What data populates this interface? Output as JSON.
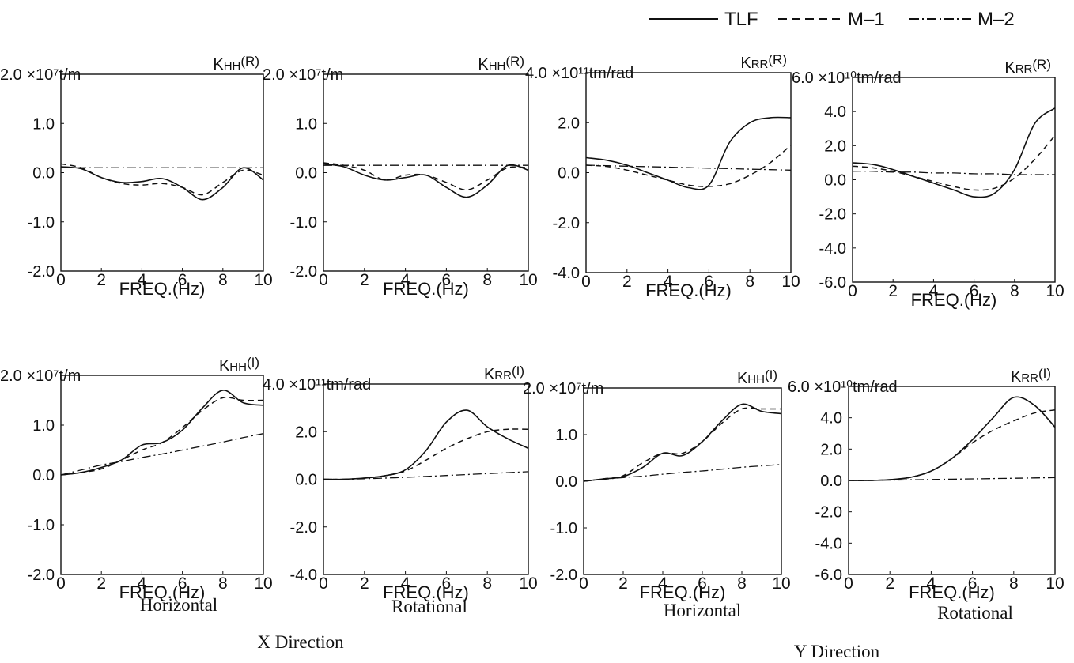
{
  "legend": {
    "entries": [
      {
        "label": "TLF",
        "style": "solid"
      },
      {
        "label": "M–1",
        "style": "dashed"
      },
      {
        "label": "M–2",
        "style": "dashdot"
      }
    ]
  },
  "captions": {
    "x_direction": "X Direction",
    "y_direction": "Y Direction",
    "horizontal": "Horizontal",
    "rotational": "Rotational"
  },
  "chart_data": [
    {
      "type": "line",
      "id": "p1",
      "group": "X Direction",
      "kind": "Horizontal",
      "unit": "×10⁷t/m",
      "title": "KHH(R)",
      "xlabel": "FREQ.(Hz)",
      "xlim": [
        0,
        10
      ],
      "ylim": [
        -2.0,
        2.0
      ],
      "yticks": [
        "-2.0",
        "-1.0",
        "0.0",
        "1.0",
        "2.0"
      ],
      "xticks": [
        "0",
        "2",
        "4",
        "6",
        "8",
        "10"
      ],
      "x": [
        0,
        1,
        2,
        3,
        4,
        5,
        6,
        7,
        8,
        9,
        10
      ],
      "series": [
        {
          "legend": "TLF",
          "values": [
            0.12,
            0.08,
            -0.1,
            -0.2,
            -0.18,
            -0.12,
            -0.3,
            -0.55,
            -0.3,
            0.1,
            -0.15
          ]
        },
        {
          "legend": "M–1",
          "values": [
            0.18,
            0.1,
            -0.1,
            -0.22,
            -0.25,
            -0.22,
            -0.3,
            -0.45,
            -0.2,
            0.05,
            -0.05
          ]
        },
        {
          "legend": "M–2",
          "values": [
            0.1,
            0.1,
            0.1,
            0.1,
            0.1,
            0.1,
            0.1,
            0.1,
            0.1,
            0.1,
            0.1
          ]
        }
      ]
    },
    {
      "type": "line",
      "id": "p2",
      "group": "X Direction",
      "kind": "Rotational",
      "unit": "×10⁷t/m",
      "title": "KHH(R)",
      "xlabel": "FREQ.(Hz)",
      "xlim": [
        0,
        10
      ],
      "ylim": [
        -2.0,
        2.0
      ],
      "yticks": [
        "-2.0",
        "-1.0",
        "0.0",
        "1.0",
        "2.0"
      ],
      "xticks": [
        "0",
        "2",
        "4",
        "6",
        "8",
        "10"
      ],
      "x": [
        0,
        1,
        2,
        3,
        4,
        5,
        6,
        7,
        8,
        9,
        10
      ],
      "series": [
        {
          "legend": "TLF",
          "values": [
            0.18,
            0.12,
            -0.05,
            -0.15,
            -0.1,
            -0.05,
            -0.3,
            -0.5,
            -0.25,
            0.15,
            0.05
          ]
        },
        {
          "legend": "M–1",
          "values": [
            0.2,
            0.15,
            0.05,
            -0.15,
            -0.05,
            -0.05,
            -0.2,
            -0.35,
            -0.15,
            0.1,
            0.1
          ]
        },
        {
          "legend": "M–2",
          "values": [
            0.15,
            0.15,
            0.15,
            0.15,
            0.15,
            0.15,
            0.15,
            0.15,
            0.15,
            0.15,
            0.15
          ]
        }
      ]
    },
    {
      "type": "line",
      "id": "p3",
      "group": "Y Direction",
      "kind": "Horizontal",
      "unit": "×10¹¹tm/rad",
      "title": "KRR(R)",
      "xlabel": "FREQ.(Hz)",
      "xlim": [
        0,
        10
      ],
      "ylim": [
        -4.0,
        4.0
      ],
      "yticks": [
        "-4.0",
        "-2.0",
        "0.0",
        "2.0",
        "4.0"
      ],
      "xticks": [
        "0",
        "2",
        "4",
        "6",
        "8",
        "10"
      ],
      "x": [
        0,
        1,
        2,
        3,
        4,
        5,
        6,
        7,
        8,
        9,
        10
      ],
      "series": [
        {
          "legend": "TLF",
          "values": [
            0.6,
            0.5,
            0.3,
            0.0,
            -0.3,
            -0.6,
            -0.5,
            1.2,
            2.0,
            2.2,
            2.2
          ]
        },
        {
          "legend": "M–1",
          "values": [
            0.3,
            0.25,
            0.1,
            -0.1,
            -0.3,
            -0.5,
            -0.55,
            -0.45,
            -0.1,
            0.4,
            1.1
          ]
        },
        {
          "legend": "M–2",
          "values": [
            0.3,
            0.28,
            0.26,
            0.24,
            0.22,
            0.2,
            0.18,
            0.16,
            0.14,
            0.12,
            0.1
          ]
        }
      ]
    },
    {
      "type": "line",
      "id": "p4",
      "group": "Y Direction",
      "kind": "Rotational",
      "unit": "×10¹⁰tm/rad",
      "title": "KRR(R)",
      "xlabel": "FREQ.(Hz)",
      "xlim": [
        0,
        10
      ],
      "ylim": [
        -6.0,
        6.0
      ],
      "yticks": [
        "-6.0",
        "-4.0",
        "-2.0",
        "0.0",
        "2.0",
        "4.0",
        "6.0"
      ],
      "xticks": [
        "0",
        "2",
        "4",
        "6",
        "8",
        "10"
      ],
      "x": [
        0,
        1,
        2,
        3,
        4,
        5,
        6,
        7,
        8,
        9,
        10
      ],
      "series": [
        {
          "legend": "TLF",
          "values": [
            1.0,
            0.9,
            0.6,
            0.2,
            -0.2,
            -0.6,
            -1.0,
            -0.8,
            0.6,
            3.3,
            4.2
          ]
        },
        {
          "legend": "M–1",
          "values": [
            0.8,
            0.7,
            0.5,
            0.2,
            -0.1,
            -0.4,
            -0.6,
            -0.5,
            0.1,
            1.2,
            2.6
          ]
        },
        {
          "legend": "M–2",
          "values": [
            0.5,
            0.5,
            0.45,
            0.45,
            0.4,
            0.4,
            0.35,
            0.35,
            0.3,
            0.3,
            0.3
          ]
        }
      ]
    },
    {
      "type": "line",
      "id": "p5",
      "group": "X Direction",
      "kind": "Horizontal",
      "unit": "×10⁷t/m",
      "title": "KHH(I)",
      "xlabel": "FREQ.(Hz)",
      "xlim": [
        0,
        10
      ],
      "ylim": [
        -2.0,
        2.0
      ],
      "yticks": [
        "-2.0",
        "-1.0",
        "0.0",
        "1.0",
        "2.0"
      ],
      "xticks": [
        "0",
        "2",
        "4",
        "6",
        "8",
        "10"
      ],
      "x": [
        0,
        1,
        2,
        3,
        4,
        5,
        6,
        7,
        8,
        9,
        10
      ],
      "series": [
        {
          "legend": "TLF",
          "values": [
            0.0,
            0.05,
            0.15,
            0.3,
            0.6,
            0.65,
            0.9,
            1.35,
            1.7,
            1.45,
            1.4
          ]
        },
        {
          "legend": "M–1",
          "values": [
            0.0,
            0.05,
            0.12,
            0.3,
            0.5,
            0.65,
            0.95,
            1.3,
            1.55,
            1.5,
            1.5
          ]
        },
        {
          "legend": "M–2",
          "values": [
            0.0,
            0.1,
            0.2,
            0.27,
            0.35,
            0.42,
            0.5,
            0.58,
            0.66,
            0.75,
            0.83
          ]
        }
      ]
    },
    {
      "type": "line",
      "id": "p6",
      "group": "X Direction",
      "kind": "Rotational",
      "unit": "×10¹¹tm/rad",
      "title": "KRR(I)",
      "xlabel": "FREQ.(Hz)",
      "xlim": [
        0,
        10
      ],
      "ylim": [
        -4.0,
        4.0
      ],
      "yticks": [
        "-4.0",
        "-2.0",
        "0.0",
        "2.0",
        "4.0"
      ],
      "xticks": [
        "0",
        "2",
        "4",
        "6",
        "8",
        "10"
      ],
      "x": [
        0,
        1,
        2,
        3,
        4,
        5,
        6,
        7,
        8,
        9,
        10
      ],
      "series": [
        {
          "legend": "TLF",
          "values": [
            0.0,
            0.0,
            0.05,
            0.15,
            0.4,
            1.2,
            2.4,
            2.9,
            2.2,
            1.7,
            1.3
          ]
        },
        {
          "legend": "M–1",
          "values": [
            0.0,
            0.0,
            0.05,
            0.15,
            0.35,
            0.8,
            1.3,
            1.7,
            2.0,
            2.1,
            2.1
          ]
        },
        {
          "legend": "M–2",
          "values": [
            0.0,
            0.0,
            0.02,
            0.05,
            0.08,
            0.12,
            0.16,
            0.2,
            0.24,
            0.28,
            0.32
          ]
        }
      ]
    },
    {
      "type": "line",
      "id": "p7",
      "group": "Y Direction",
      "kind": "Horizontal",
      "unit": "×10⁷t/m",
      "title": "KHH(I)",
      "xlabel": "FREQ.(Hz)",
      "xlim": [
        0,
        10
      ],
      "ylim": [
        -2.0,
        2.0
      ],
      "yticks": [
        "-2.0",
        "-1.0",
        "0.0",
        "1.0",
        "2.0"
      ],
      "xticks": [
        "0",
        "2",
        "4",
        "6",
        "8",
        "10"
      ],
      "x": [
        0,
        1,
        2,
        3,
        4,
        5,
        6,
        7,
        8,
        9,
        10
      ],
      "series": [
        {
          "legend": "TLF",
          "values": [
            0.0,
            0.05,
            0.1,
            0.3,
            0.6,
            0.55,
            0.85,
            1.3,
            1.65,
            1.5,
            1.45
          ]
        },
        {
          "legend": "M–1",
          "values": [
            0.0,
            0.05,
            0.12,
            0.4,
            0.6,
            0.6,
            0.85,
            1.25,
            1.55,
            1.55,
            1.55
          ]
        },
        {
          "legend": "M–2",
          "values": [
            0.0,
            0.04,
            0.08,
            0.11,
            0.15,
            0.19,
            0.22,
            0.26,
            0.3,
            0.33,
            0.36
          ]
        }
      ]
    },
    {
      "type": "line",
      "id": "p8",
      "group": "Y Direction",
      "kind": "Rotational",
      "unit": "×10¹⁰tm/rad",
      "title": "KRR(I)",
      "xlabel": "FREQ.(Hz)",
      "xlim": [
        0,
        10
      ],
      "ylim": [
        -6.0,
        6.0
      ],
      "yticks": [
        "-6.0",
        "-4.0",
        "-2.0",
        "0.0",
        "2.0",
        "4.0",
        "6.0"
      ],
      "xticks": [
        "0",
        "2",
        "4",
        "6",
        "8",
        "10"
      ],
      "x": [
        0,
        1,
        2,
        3,
        4,
        5,
        6,
        7,
        8,
        9,
        10
      ],
      "series": [
        {
          "legend": "TLF",
          "values": [
            0.0,
            0.0,
            0.05,
            0.2,
            0.6,
            1.4,
            2.6,
            4.0,
            5.3,
            4.8,
            3.4
          ]
        },
        {
          "legend": "M–1",
          "values": [
            0.0,
            0.0,
            0.05,
            0.2,
            0.6,
            1.4,
            2.4,
            3.2,
            3.8,
            4.3,
            4.5
          ]
        },
        {
          "legend": "M–2",
          "values": [
            0.0,
            0.0,
            0.02,
            0.04,
            0.06,
            0.08,
            0.1,
            0.12,
            0.14,
            0.16,
            0.18
          ]
        }
      ]
    }
  ]
}
